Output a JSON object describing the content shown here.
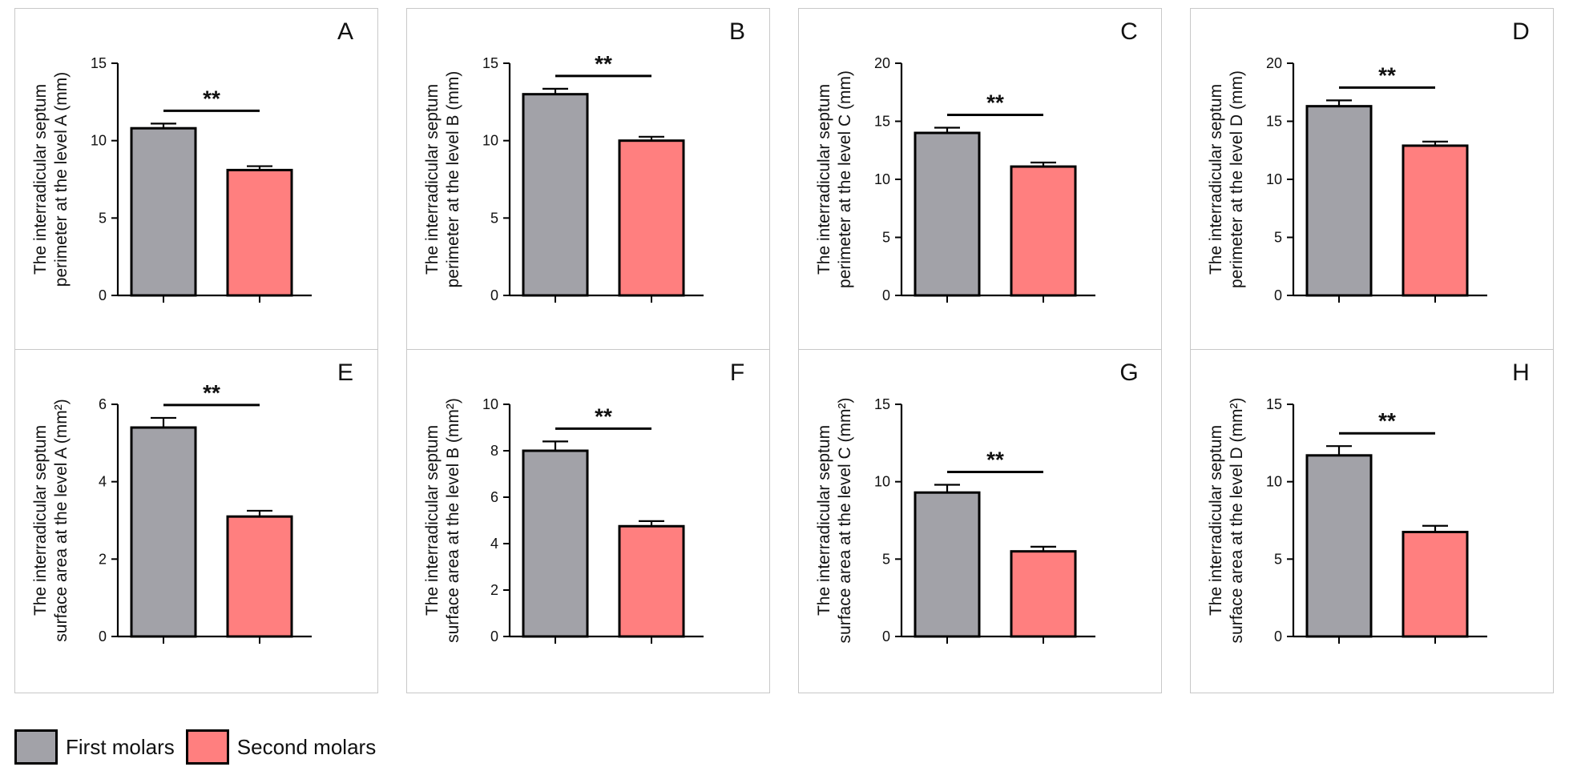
{
  "colors": {
    "first": "#a2a2a8",
    "second": "#ff7f7f",
    "axis": "#000000",
    "panel_border": "#c8c8c8"
  },
  "legend": [
    {
      "label": "First molars",
      "color": "#a2a2a8"
    },
    {
      "label": "Second molars",
      "color": "#ff7f7f"
    }
  ],
  "chart_data": [
    {
      "panel": "A",
      "type": "bar",
      "categories": [
        "First molars",
        "Second molars"
      ],
      "values": [
        10.8,
        8.1
      ],
      "errors": [
        0.3,
        0.25
      ],
      "ylabel": [
        "The interradicular septum",
        "perimeter at the level A (mm)"
      ],
      "ylim": [
        0,
        15
      ],
      "yticks": [
        0,
        5,
        10,
        15
      ],
      "significance": "**"
    },
    {
      "panel": "B",
      "type": "bar",
      "categories": [
        "First molars",
        "Second molars"
      ],
      "values": [
        13.0,
        10.0
      ],
      "errors": [
        0.35,
        0.25
      ],
      "ylabel": [
        "The interradicular septum",
        "perimeter at the level B (mm)"
      ],
      "ylim": [
        0,
        15
      ],
      "yticks": [
        0,
        5,
        10,
        15
      ],
      "significance": "**"
    },
    {
      "panel": "C",
      "type": "bar",
      "categories": [
        "First molars",
        "Second molars"
      ],
      "values": [
        14.0,
        11.1
      ],
      "errors": [
        0.45,
        0.35
      ],
      "ylabel": [
        "The interradicular septum",
        "perimeter at the level C (mm)"
      ],
      "ylim": [
        0,
        20
      ],
      "yticks": [
        0,
        5,
        10,
        15,
        20
      ],
      "significance": "**"
    },
    {
      "panel": "D",
      "type": "bar",
      "categories": [
        "First molars",
        "Second molars"
      ],
      "values": [
        16.3,
        12.9
      ],
      "errors": [
        0.5,
        0.35
      ],
      "ylabel": [
        "The interradicular septum",
        "perimeter at the level D (mm)"
      ],
      "ylim": [
        0,
        20
      ],
      "yticks": [
        0,
        5,
        10,
        15,
        20
      ],
      "significance": "**"
    },
    {
      "panel": "E",
      "type": "bar",
      "categories": [
        "First molars",
        "Second molars"
      ],
      "values": [
        5.4,
        3.1
      ],
      "errors": [
        0.25,
        0.15
      ],
      "ylabel": [
        "The interradicular septum",
        "surface area at the level A (mm²)"
      ],
      "ylim": [
        0,
        6
      ],
      "yticks": [
        0,
        2,
        4,
        6
      ],
      "significance": "**"
    },
    {
      "panel": "F",
      "type": "bar",
      "categories": [
        "First molars",
        "Second molars"
      ],
      "values": [
        8.0,
        4.75
      ],
      "errors": [
        0.4,
        0.22
      ],
      "ylabel": [
        "The interradicular septum",
        "surface area at the level B (mm²)"
      ],
      "ylim": [
        0,
        10
      ],
      "yticks": [
        0,
        2,
        4,
        6,
        8,
        10
      ],
      "significance": "**"
    },
    {
      "panel": "G",
      "type": "bar",
      "categories": [
        "First molars",
        "Second molars"
      ],
      "values": [
        9.3,
        5.5
      ],
      "errors": [
        0.5,
        0.3
      ],
      "ylabel": [
        "The interradicular septum",
        "surface area at the level C (mm²)"
      ],
      "ylim": [
        0,
        15
      ],
      "yticks": [
        0,
        5,
        10,
        15
      ],
      "significance": "**"
    },
    {
      "panel": "H",
      "type": "bar",
      "categories": [
        "First molars",
        "Second molars"
      ],
      "values": [
        11.7,
        6.75
      ],
      "errors": [
        0.6,
        0.4
      ],
      "ylabel": [
        "The interradicular septum",
        "surface area at the level D (mm²)"
      ],
      "ylim": [
        0,
        15
      ],
      "yticks": [
        0,
        5,
        10,
        15
      ],
      "significance": "**"
    }
  ]
}
